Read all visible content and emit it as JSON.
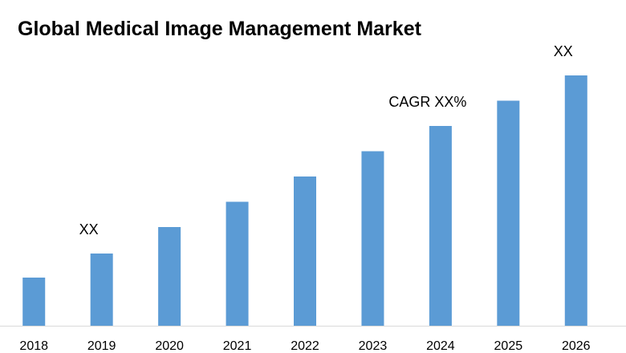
{
  "chart_data": {
    "type": "bar",
    "title": "Global Medical Image Management Market",
    "categories": [
      "2018",
      "2019",
      "2020",
      "2021",
      "2022",
      "2023",
      "2024",
      "2025",
      "2026"
    ],
    "values": [
      2.0,
      3.0,
      4.1,
      5.15,
      6.2,
      7.25,
      8.3,
      9.35,
      10.4
    ],
    "xlabel": "",
    "ylabel": "",
    "ylim": [
      0,
      11
    ],
    "grid": false,
    "bar_color": "#5b9bd5",
    "annotations": [
      {
        "text": "XX",
        "category": "2019"
      },
      {
        "text": "CAGR XX%",
        "category": "2024"
      },
      {
        "text": "XX",
        "category": "2026"
      }
    ]
  }
}
